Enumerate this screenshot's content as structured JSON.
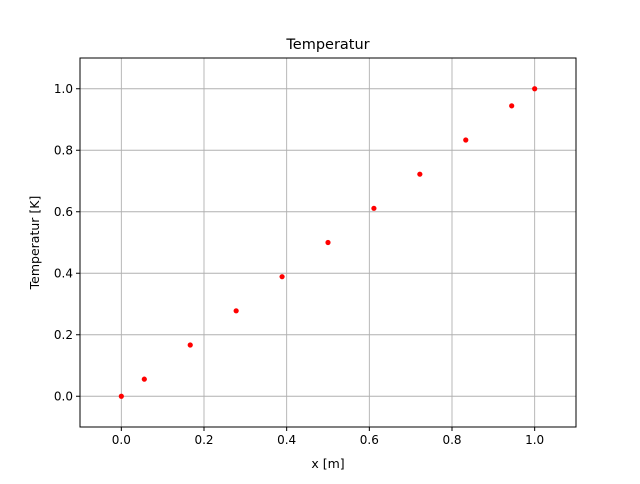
{
  "chart_data": {
    "type": "scatter",
    "title": "Temperatur",
    "xlabel": "x [m]",
    "ylabel": "Temperatur [K]",
    "xlim": [
      -0.1,
      1.1
    ],
    "ylim": [
      -0.1,
      1.1
    ],
    "xticks": [
      0.0,
      0.2,
      0.4,
      0.6,
      0.8,
      1.0
    ],
    "yticks": [
      0.0,
      0.2,
      0.4,
      0.6,
      0.8,
      1.0
    ],
    "xtick_labels": [
      "0.0",
      "0.2",
      "0.4",
      "0.6",
      "0.8",
      "1.0"
    ],
    "ytick_labels": [
      "0.0",
      "0.2",
      "0.4",
      "0.6",
      "0.8",
      "1.0"
    ],
    "grid": true,
    "series": [
      {
        "color": "#ff0000",
        "marker": "dot",
        "x": [
          0.0,
          0.0556,
          0.1667,
          0.2778,
          0.3889,
          0.5,
          0.6111,
          0.7222,
          0.8333,
          0.9444,
          1.0
        ],
        "y": [
          0.0,
          0.0556,
          0.1667,
          0.2778,
          0.3889,
          0.5,
          0.6111,
          0.7222,
          0.8333,
          0.9444,
          1.0
        ]
      }
    ]
  }
}
